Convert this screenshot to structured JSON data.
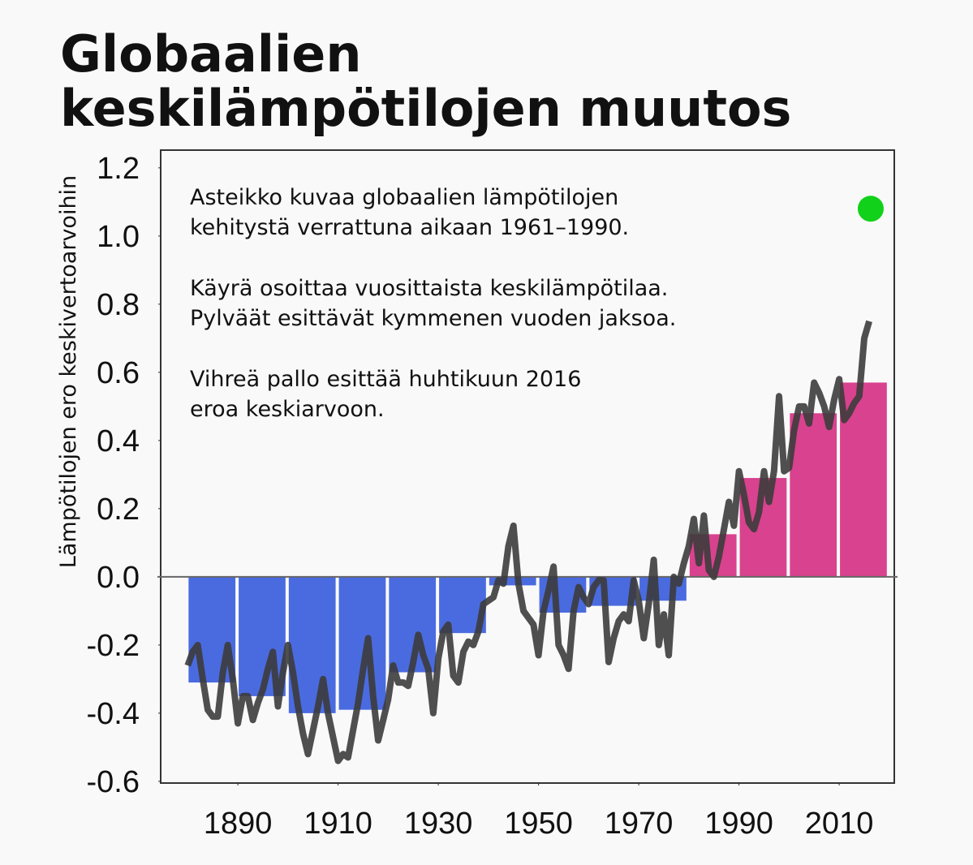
{
  "chart_data": {
    "type": "bar-line",
    "title": [
      "Globaalien",
      "keskilämpötilojen muutos"
    ],
    "y_label": "Lämpötilojen ero keskivertoarvoihin",
    "annotations": [
      [
        "Asteikko kuvaa globaalien lämpötilojen",
        "kehitystä verrattuna aikaan 1961–1990."
      ],
      [
        "Käyrä osoittaa vuosittaista keskilämpötilaa.",
        "Pylväät esittävät kymmenen vuoden jaksoa."
      ],
      [
        "Vihreä pallo esittää huhtikuun 2016",
        "eroa keskiarvoon."
      ]
    ],
    "xlim": [
      1874.6,
      2021
    ],
    "ylim": [
      -0.605,
      1.252
    ],
    "xticks": [
      1890,
      1910,
      1930,
      1950,
      1970,
      1990,
      2010
    ],
    "yticks": [
      -0.6,
      -0.4,
      -0.2,
      {
        "value": 0,
        "label": "0.0"
      },
      0.2,
      0.4,
      0.6,
      0.8,
      {
        "value": 1,
        "label": "1.0"
      },
      1.2
    ],
    "bars": {
      "x": [
        1880,
        1890,
        1900,
        1910,
        1920,
        1930,
        1940,
        1950,
        1960,
        1970,
        1980,
        1990,
        2000,
        2010
      ],
      "values": [
        -0.31,
        -0.35,
        -0.4,
        -0.39,
        -0.28,
        -0.165,
        -0.025,
        -0.105,
        -0.085,
        -0.07,
        0.125,
        0.29,
        0.48,
        0.57
      ],
      "negative_color": "#4a6be0",
      "positive_color": "#d9428e"
    },
    "line": {
      "color": "#3c3c3c",
      "x": [
        1880,
        1881,
        1882,
        1883,
        1884,
        1885,
        1886,
        1887,
        1888,
        1889,
        1890,
        1891,
        1892,
        1893,
        1894,
        1895,
        1896,
        1897,
        1898,
        1899,
        1900,
        1901,
        1902,
        1903,
        1904,
        1905,
        1906,
        1907,
        1908,
        1909,
        1910,
        1911,
        1912,
        1913,
        1914,
        1915,
        1916,
        1917,
        1918,
        1919,
        1920,
        1921,
        1922,
        1923,
        1924,
        1925,
        1926,
        1927,
        1928,
        1929,
        1930,
        1931,
        1932,
        1933,
        1934,
        1935,
        1936,
        1937,
        1938,
        1939,
        1940,
        1941,
        1942,
        1943,
        1944,
        1945,
        1946,
        1947,
        1948,
        1949,
        1950,
        1951,
        1952,
        1953,
        1954,
        1955,
        1956,
        1957,
        1958,
        1959,
        1960,
        1961,
        1962,
        1963,
        1964,
        1965,
        1966,
        1967,
        1968,
        1969,
        1970,
        1971,
        1972,
        1973,
        1974,
        1975,
        1976,
        1977,
        1978,
        1979,
        1980,
        1981,
        1982,
        1983,
        1984,
        1985,
        1986,
        1987,
        1988,
        1989,
        1990,
        1991,
        1992,
        1993,
        1994,
        1995,
        1996,
        1997,
        1998,
        1999,
        2000,
        2001,
        2002,
        2003,
        2004,
        2005,
        2006,
        2007,
        2008,
        2009,
        2010,
        2011,
        2012,
        2013,
        2014,
        2015,
        2016
      ],
      "values": [
        -0.26,
        -0.22,
        -0.2,
        -0.3,
        -0.39,
        -0.41,
        -0.41,
        -0.28,
        -0.2,
        -0.3,
        -0.43,
        -0.35,
        -0.35,
        -0.42,
        -0.37,
        -0.33,
        -0.27,
        -0.22,
        -0.38,
        -0.28,
        -0.2,
        -0.28,
        -0.38,
        -0.46,
        -0.52,
        -0.45,
        -0.38,
        -0.3,
        -0.4,
        -0.47,
        -0.54,
        -0.52,
        -0.53,
        -0.45,
        -0.37,
        -0.27,
        -0.18,
        -0.35,
        -0.48,
        -0.42,
        -0.36,
        -0.26,
        -0.31,
        -0.31,
        -0.32,
        -0.25,
        -0.17,
        -0.23,
        -0.27,
        -0.4,
        -0.24,
        -0.16,
        -0.14,
        -0.29,
        -0.31,
        -0.22,
        -0.19,
        -0.2,
        -0.16,
        -0.08,
        -0.07,
        -0.06,
        -0.01,
        -0.02,
        0.09,
        0.15,
        -0.02,
        -0.1,
        -0.12,
        -0.14,
        -0.23,
        -0.1,
        -0.04,
        0.03,
        -0.2,
        -0.23,
        -0.27,
        -0.1,
        -0.03,
        -0.06,
        -0.08,
        -0.03,
        -0.01,
        -0.01,
        -0.25,
        -0.18,
        -0.13,
        -0.11,
        -0.13,
        -0.01,
        -0.07,
        -0.18,
        -0.08,
        0.05,
        -0.2,
        -0.11,
        -0.23,
        0,
        -0.02,
        0.04,
        0.09,
        0.17,
        0.04,
        0.18,
        0.02,
        0,
        0.06,
        0.14,
        0.22,
        0.15,
        0.31,
        0.24,
        0.16,
        0.14,
        0.19,
        0.31,
        0.22,
        0.31,
        0.53,
        0.31,
        0.32,
        0.43,
        0.5,
        0.5,
        0.45,
        0.57,
        0.54,
        0.5,
        0.44,
        0.52,
        0.58,
        0.46,
        0.48,
        0.51,
        0.53,
        0.7,
        0.75
      ]
    },
    "dot": {
      "x": 2016.3,
      "value": 1.08,
      "color": "#11d11a"
    }
  }
}
